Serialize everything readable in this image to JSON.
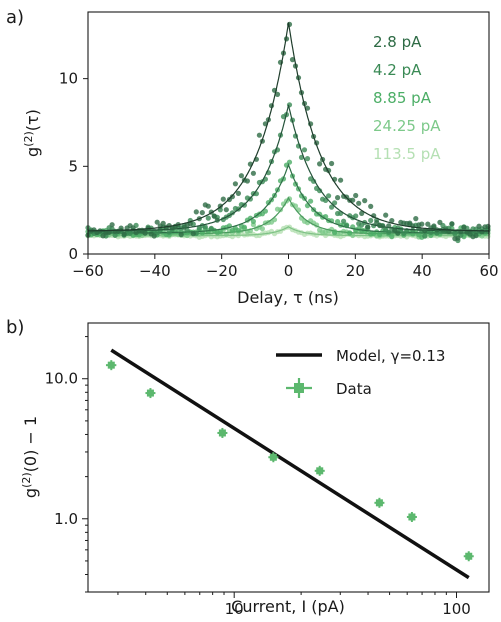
{
  "chart_data": [
    {
      "type": "scatter",
      "panel_label": "a)",
      "xlabel": "Delay, τ (ns)",
      "ylabel": "g(2)(τ)",
      "ylabel_parts": {
        "base": "g",
        "sup": "(2)",
        "rest": "(τ)"
      },
      "xlim": [
        -60,
        60
      ],
      "ylim": [
        0,
        13.8
      ],
      "xticks": [
        -60,
        -40,
        -20,
        0,
        20,
        40,
        60
      ],
      "xtick_labels": [
        "−60",
        "−40",
        "−20",
        "0",
        "20",
        "40",
        "60"
      ],
      "yticks": [
        0,
        5,
        10
      ],
      "ytick_labels": [
        "0",
        "5",
        "10"
      ],
      "series": [
        {
          "name": "2.8 pA",
          "color": "#2e6b45",
          "fit_color": "#1f3d2c",
          "peak": 13.2,
          "baseline": 1.3,
          "decay_ns": 9.5,
          "noise": 0.45
        },
        {
          "name": "4.2 pA",
          "color": "#3a8a55",
          "fit_color": "#24533a",
          "peak": 8.5,
          "baseline": 1.3,
          "decay_ns": 8.5,
          "noise": 0.3
        },
        {
          "name": "8.85 pA",
          "color": "#4cae66",
          "fit_color": "#2f7048",
          "peak": 5.1,
          "baseline": 1.2,
          "decay_ns": 7.0,
          "noise": 0.2
        },
        {
          "name": "24.25 pA",
          "color": "#7dc98a",
          "fit_color": "#4b9a5e",
          "peak": 3.2,
          "baseline": 1.15,
          "decay_ns": 5.5,
          "noise": 0.14
        },
        {
          "name": "113.5 pA",
          "color": "#b5e0b3",
          "fit_color": "#7fc286",
          "peak": 1.55,
          "baseline": 1.05,
          "decay_ns": 4.5,
          "noise": 0.06
        }
      ]
    },
    {
      "type": "scatter",
      "panel_label": "b)",
      "xlabel": "Current, I (pA)",
      "ylabel": "g(2)(0) − 1",
      "ylabel_parts": {
        "base": "g",
        "sup": "(2)",
        "rest": "(0) − 1"
      },
      "xscale": "log",
      "yscale": "log",
      "xlim": [
        2.2,
        140
      ],
      "ylim": [
        0.3,
        25
      ],
      "xticks": [
        10,
        100
      ],
      "xtick_labels": [
        "10",
        "100"
      ],
      "yticks": [
        1.0,
        10.0
      ],
      "ytick_labels": [
        "1.0",
        "10.0"
      ],
      "legend_position": "top-right",
      "model": {
        "name": "Model, γ=0.13",
        "x": [
          2.8,
          113.5
        ],
        "y": [
          16.0,
          0.38
        ],
        "color": "#111111"
      },
      "data": {
        "name": "Data",
        "color": "#5cb86e",
        "x": [
          2.8,
          4.2,
          8.85,
          15.0,
          24.25,
          45.0,
          63.0,
          113.5
        ],
        "y": [
          12.5,
          7.9,
          4.1,
          2.75,
          2.2,
          1.3,
          1.03,
          0.54
        ],
        "x_err": [
          0.15,
          0.2,
          0.35,
          0.5,
          0.8,
          1.5,
          2.0,
          4.0
        ],
        "y_err": [
          0.7,
          0.45,
          0.25,
          0.15,
          0.12,
          0.07,
          0.06,
          0.035
        ]
      }
    }
  ]
}
